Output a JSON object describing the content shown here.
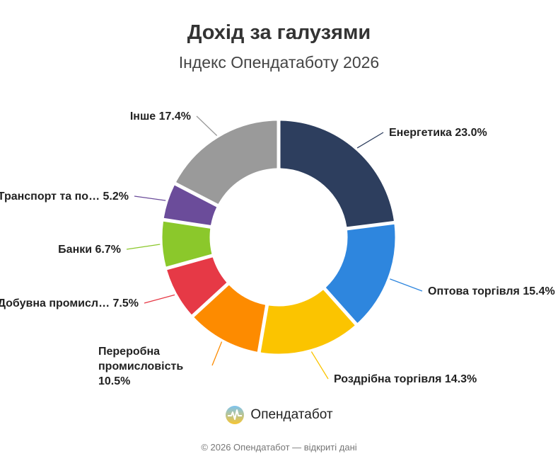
{
  "chart_data": {
    "type": "pie",
    "donut": true,
    "title": "Дохід за галузями",
    "subtitle": "Індекс Опендатаботу 2026",
    "slices": [
      {
        "label": "Енергетика",
        "value": 23.0,
        "value_label": "23.0%",
        "color": "#2d3e5e"
      },
      {
        "label": "Оптова торгівля",
        "value": 15.4,
        "value_label": "15.4%",
        "color": "#2e86de"
      },
      {
        "label": "Роздрібна торгівля",
        "value": 14.3,
        "value_label": "14.3%",
        "color": "#fbc400"
      },
      {
        "label": "Переробна промисловість",
        "value": 10.5,
        "value_label": "10.5%",
        "color": "#fd8b00"
      },
      {
        "label": "Добувна промисл…",
        "value": 7.5,
        "value_label": "7.5%",
        "color": "#e63946"
      },
      {
        "label": "Банки",
        "value": 6.7,
        "value_label": "6.7%",
        "color": "#8bc82b"
      },
      {
        "label": "Транспорт та по…",
        "value": 5.2,
        "value_label": "5.2%",
        "color": "#6b4c9a"
      },
      {
        "label": "Інше",
        "value": 17.4,
        "value_label": "17.4%",
        "color": "#9a9a9a"
      }
    ]
  },
  "brand": {
    "name": "Опендатабот",
    "logo_icon": "opendatabot-logo-icon"
  },
  "footer": "© 2026 Опендатабот — відкриті дані"
}
